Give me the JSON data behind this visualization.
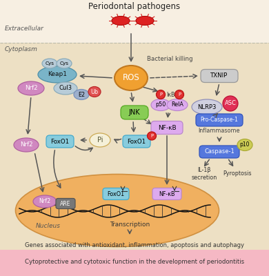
{
  "title": "Periodontal pathogens",
  "bottom_text": "Cytoprotective and cytotoxic function in the development of periodontitis",
  "middle_text": "Genes associated with antioxidant, inflammation, apoptosis and autophagy",
  "extracellular_label": "Extracellular",
  "cytoplasm_label": "Cytoplasm",
  "nucleus_label": "Nucleus",
  "transcription_label": "Transcription",
  "bacterial_killing_label": "Bacterial killing",
  "inflammasome_label": "Inflammasome",
  "bg_color": "#f5ead8",
  "cyto_color": "#ede0c4",
  "ext_color": "#f5ead8",
  "bottom_bar_color": "#f5b8c4",
  "nucleus_color": "#f0b060"
}
